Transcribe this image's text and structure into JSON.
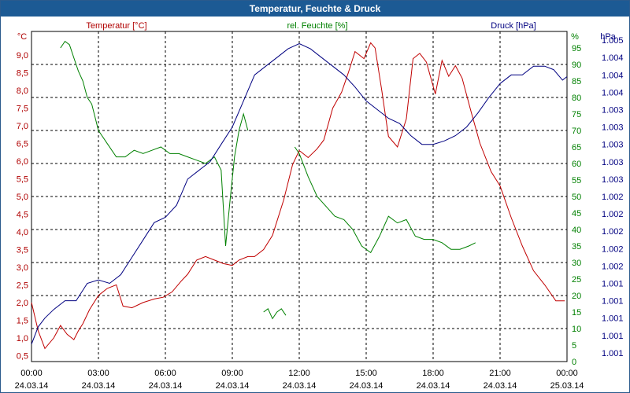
{
  "window": {
    "title": "Temperatur, Feuchte & Druck"
  },
  "colors": {
    "temperature": "#c00000",
    "humidity": "#008000",
    "pressure": "#000080",
    "title_bar": "#1c5a94"
  },
  "chart_data": {
    "type": "line",
    "title": "Temperatur, Feuchte & Druck",
    "grid": true,
    "x": {
      "range_hours": [
        0,
        24
      ],
      "ticks": [
        {
          "h": 0,
          "time": "00:00",
          "date": "24.03.14"
        },
        {
          "h": 3,
          "time": "03:00",
          "date": "24.03.14"
        },
        {
          "h": 6,
          "time": "06:00",
          "date": "24.03.14"
        },
        {
          "h": 9,
          "time": "09:00",
          "date": "24.03.14"
        },
        {
          "h": 12,
          "time": "12:00",
          "date": "24.03.14"
        },
        {
          "h": 15,
          "time": "15:00",
          "date": "24.03.14"
        },
        {
          "h": 18,
          "time": "18:00",
          "date": "24.03.14"
        },
        {
          "h": 21,
          "time": "21:00",
          "date": "24.03.14"
        },
        {
          "h": 24,
          "time": "00:00",
          "date": "25.03.14"
        }
      ]
    },
    "axes": {
      "temperature": {
        "unit": "°C",
        "label": "Temperatur [°C]",
        "ylim": [
          0.33,
          9.67
        ],
        "ticks": [
          "0,5",
          "1,0",
          "1,5",
          "2,0",
          "2,5",
          "3,0",
          "3,5",
          "4,0",
          "4,5",
          "5,0",
          "5,5",
          "6,0",
          "6,5",
          "7,0",
          "7,5",
          "8,0",
          "8,5",
          "9,0"
        ]
      },
      "humidity": {
        "unit": "%",
        "label": "rel. Feuchte [%]",
        "ylim": [
          0,
          100
        ],
        "ticks": [
          "0",
          "5",
          "10",
          "15",
          "20",
          "25",
          "30",
          "35",
          "40",
          "45",
          "50",
          "55",
          "60",
          "65",
          "70",
          "75",
          "80",
          "85",
          "90",
          "95"
        ]
      },
      "pressure": {
        "unit": "hPa",
        "label": "Druck [hPa]",
        "ylim": [
          0,
          19
        ],
        "ticks": [
          "1.001",
          "1.001",
          "1.001",
          "1.001",
          "1.001",
          "1.002",
          "1.002",
          "1.002",
          "1.002",
          "1.002",
          "1.003",
          "1.003",
          "1.003",
          "1.003",
          "1.003",
          "1.004",
          "1.004",
          "1.004",
          "1.005"
        ]
      }
    },
    "series": [
      {
        "name": "Temperatur [°C]",
        "axis": "temperature",
        "x": [
          0,
          0.3,
          0.6,
          1.0,
          1.3,
          1.6,
          1.9,
          2.1,
          2.3,
          2.6,
          3.0,
          3.4,
          3.8,
          4.1,
          4.5,
          5.0,
          5.5,
          5.9,
          6.3,
          6.7,
          7.0,
          7.4,
          7.8,
          8.2,
          8.6,
          9.0,
          9.3,
          9.7,
          10.0,
          10.4,
          10.8,
          11.3,
          11.7,
          12.0,
          12.4,
          12.8,
          13.1,
          13.5,
          13.9,
          14.2,
          14.5,
          14.9,
          15.2,
          15.4,
          15.7,
          16.0,
          16.4,
          16.8,
          17.1,
          17.4,
          17.7,
          18.1,
          18.4,
          18.7,
          19.0,
          19.3,
          19.7,
          20.1,
          20.6,
          21.0,
          21.5,
          22.0,
          22.5,
          23.0,
          23.5,
          23.9
        ],
        "values": [
          2.0,
          1.2,
          0.7,
          1.0,
          1.35,
          1.1,
          0.95,
          1.2,
          1.4,
          1.8,
          2.2,
          2.4,
          2.5,
          1.9,
          1.85,
          2.0,
          2.1,
          2.15,
          2.3,
          2.6,
          2.8,
          3.2,
          3.3,
          3.2,
          3.1,
          3.05,
          3.2,
          3.3,
          3.3,
          3.5,
          3.9,
          4.9,
          5.9,
          6.3,
          6.1,
          6.35,
          6.6,
          7.5,
          7.95,
          8.5,
          9.1,
          8.9,
          9.35,
          9.2,
          8.0,
          6.7,
          6.4,
          7.2,
          8.9,
          9.05,
          8.8,
          7.9,
          8.85,
          8.4,
          8.7,
          8.35,
          7.4,
          6.5,
          5.7,
          5.3,
          4.4,
          3.6,
          2.9,
          2.5,
          2.05,
          2.05
        ]
      },
      {
        "name": "rel. Feuchte [%]",
        "axis": "humidity",
        "x": [
          1.3,
          1.5,
          1.7,
          1.9,
          2.1,
          2.3,
          2.5,
          2.7,
          3.0,
          3.4,
          3.8,
          4.2,
          4.6,
          5.0,
          5.4,
          5.8,
          6.2,
          6.6,
          7.0,
          7.4,
          7.8,
          8.2,
          8.5,
          8.7,
          8.9,
          9.1,
          9.3,
          9.5,
          9.7
        ],
        "values": [
          95,
          97,
          96,
          92,
          88,
          85,
          80,
          78,
          70,
          66,
          62,
          62,
          64,
          63,
          64,
          65,
          63,
          63,
          62,
          61,
          60,
          62,
          58,
          35,
          49,
          62,
          70,
          75,
          70
        ],
        "x2": [
          10.4,
          10.6,
          10.8,
          11.0,
          11.2,
          11.4
        ],
        "values2": [
          15,
          16,
          13,
          15,
          16,
          14
        ],
        "x3": [
          11.8,
          12.0,
          12.4,
          12.8,
          13.2,
          13.6,
          14.0,
          14.4,
          14.8,
          15.2,
          15.6,
          16.0,
          16.4,
          16.8,
          17.2,
          17.6,
          18.0,
          18.4,
          18.8,
          19.2,
          19.6,
          19.9
        ],
        "values3": [
          65,
          63,
          56,
          50,
          47,
          44,
          43,
          40,
          35,
          33,
          38,
          44,
          42,
          43,
          38,
          37,
          37,
          36,
          34,
          34,
          35,
          36
        ]
      },
      {
        "name": "Druck [hPa]",
        "axis": "pressure",
        "x": [
          0,
          0.3,
          0.6,
          1.0,
          1.5,
          2.0,
          2.5,
          3.0,
          3.5,
          4.0,
          4.5,
          5.0,
          5.5,
          6.0,
          6.5,
          7.0,
          7.5,
          8.0,
          8.5,
          9.0,
          9.5,
          10.0,
          10.5,
          11.0,
          11.5,
          12.0,
          12.5,
          13.0,
          13.5,
          14.0,
          14.5,
          15.0,
          15.5,
          16.0,
          16.5,
          17.0,
          17.5,
          18.0,
          18.5,
          19.0,
          19.5,
          20.0,
          20.5,
          21.0,
          21.5,
          22.0,
          22.5,
          23.0,
          23.4,
          23.8,
          24.0
        ],
        "values": [
          1.0,
          2.0,
          2.5,
          3.0,
          3.5,
          3.5,
          4.5,
          4.7,
          4.5,
          5.0,
          6.0,
          7.0,
          8.0,
          8.3,
          9.0,
          10.5,
          11.0,
          11.5,
          12.5,
          13.5,
          15.0,
          16.5,
          17.0,
          17.5,
          18.0,
          18.3,
          18.0,
          17.5,
          17.0,
          16.5,
          15.8,
          15.0,
          14.5,
          14.0,
          13.7,
          13.0,
          12.5,
          12.5,
          12.7,
          13.0,
          13.5,
          14.3,
          15.2,
          16.0,
          16.5,
          16.5,
          17.0,
          17.0,
          16.8,
          16.2,
          16.4
        ]
      }
    ]
  }
}
